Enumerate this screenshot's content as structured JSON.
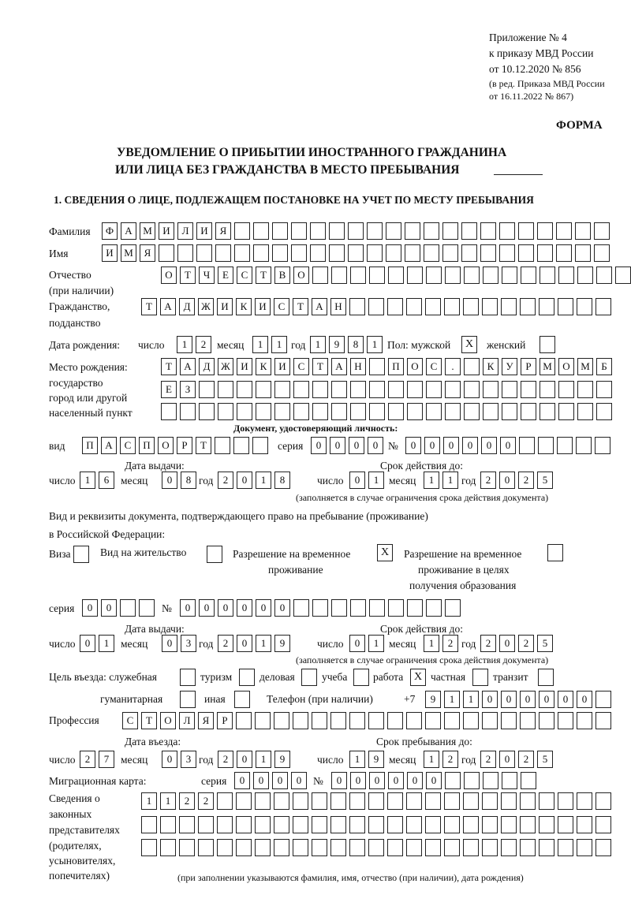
{
  "header": {
    "appendix": "Приложение № 4",
    "order": "к приказу МВД России",
    "order_date": "от 10.12.2020 № 856",
    "edition_1": "(в ред. Приказа МВД России",
    "edition_2": "от 16.11.2022 № 867)",
    "form_label": "ФОРМА",
    "title_1": "УВЕДОМЛЕНИЕ О ПРИБЫТИИ ИНОСТРАННОГО ГРАЖДАНИНА",
    "title_2": "ИЛИ ЛИЦА БЕЗ ГРАЖДАНСТВА В МЕСТО ПРЕБЫВАНИЯ"
  },
  "section1": {
    "heading": "1. СВЕДЕНИЯ О ЛИЦЕ, ПОДЛЕЖАЩЕМ ПОСТАНОВКЕ НА УЧЕТ ПО МЕСТУ ПРЕБЫВАНИЯ",
    "surname": {
      "label": "Фамилия",
      "cells": [
        "Ф",
        "А",
        "М",
        "И",
        "Л",
        "И",
        "Я",
        "",
        "",
        "",
        "",
        "",
        "",
        "",
        "",
        "",
        "",
        "",
        "",
        "",
        "",
        "",
        "",
        "",
        "",
        "",
        ""
      ]
    },
    "name": {
      "label": "Имя",
      "cells": [
        "И",
        "М",
        "Я",
        "",
        "",
        "",
        "",
        "",
        "",
        "",
        "",
        "",
        "",
        "",
        "",
        "",
        "",
        "",
        "",
        "",
        "",
        "",
        "",
        "",
        "",
        "",
        ""
      ]
    },
    "patronymic": {
      "label": "Отчество",
      "label_2": "(при наличии)",
      "cells": [
        "О",
        "Т",
        "Ч",
        "Е",
        "С",
        "Т",
        "В",
        "О",
        "",
        "",
        "",
        "",
        "",
        "",
        "",
        "",
        "",
        "",
        "",
        "",
        "",
        "",
        "",
        "",
        ""
      ]
    },
    "citizenship": {
      "label": "Гражданство,",
      "label_2": "подданство",
      "cells": [
        "Т",
        "А",
        "Д",
        "Ж",
        "И",
        "К",
        "И",
        "С",
        "Т",
        "А",
        "Н",
        "",
        "",
        "",
        "",
        "",
        "",
        "",
        "",
        "",
        "",
        "",
        "",
        "",
        ""
      ]
    },
    "birth_date": {
      "label": "Дата рождения:",
      "day_label": "число",
      "month_label": "месяц",
      "year_label": "год",
      "day": [
        "1",
        "2"
      ],
      "month": [
        "1",
        "1"
      ],
      "year": [
        "1",
        "9",
        "8",
        "1"
      ]
    },
    "sex": {
      "label": "Пол: мужской",
      "male": "X",
      "female_label": "женский",
      "female": ""
    },
    "birth_place": {
      "label_1": "Место рождения:",
      "label_2": "государство",
      "label_3": "город или другой",
      "label_4": "населенный пункт",
      "row_1": [
        "Т",
        "А",
        "Д",
        "Ж",
        "И",
        "К",
        "И",
        "С",
        "Т",
        "А",
        "Н",
        "",
        "П",
        "О",
        "С",
        ".",
        "",
        "К",
        "У",
        "Р",
        "М",
        "О",
        "М",
        "Б"
      ],
      "row_2": [
        "Е",
        "З",
        "",
        "",
        "",
        "",
        "",
        "",
        "",
        "",
        "",
        "",
        "",
        "",
        "",
        "",
        "",
        "",
        "",
        "",
        "",
        "",
        "",
        ""
      ],
      "row_3": [
        "",
        "",
        "",
        "",
        "",
        "",
        "",
        "",
        "",
        "",
        "",
        "",
        "",
        "",
        "",
        "",
        "",
        "",
        "",
        "",
        "",
        "",
        "",
        ""
      ]
    },
    "identity_doc": {
      "heading": "Документ, удостоверяющий личность:",
      "type_label": "вид",
      "type": [
        "П",
        "А",
        "С",
        "П",
        "О",
        "Р",
        "Т",
        "",
        "",
        ""
      ],
      "series_label": "серия",
      "series": [
        "0",
        "0",
        "0",
        "0"
      ],
      "number_label": "№",
      "number": [
        "0",
        "0",
        "0",
        "0",
        "0",
        "0",
        "",
        "",
        "",
        "",
        ""
      ],
      "issue_label": "Дата выдачи:",
      "valid_label": "Срок действия до:",
      "issue": {
        "day": [
          "1",
          "6"
        ],
        "month": [
          "0",
          "8"
        ],
        "year": [
          "2",
          "0",
          "1",
          "8"
        ]
      },
      "valid": {
        "day": [
          "0",
          "1"
        ],
        "month": [
          "1",
          "1"
        ],
        "year": [
          "2",
          "0",
          "2",
          "5"
        ]
      },
      "note": "(заполняется в случае ограничения срока действия документа)"
    },
    "stay_doc": {
      "label_1": "Вид и реквизиты документа, подтверждающего право на пребывание (проживание)",
      "label_2": "в Российской Федерации:",
      "visa_label": "Виза",
      "visa": "",
      "residence_label": "Вид на жительство",
      "residence": "",
      "temp_label_1": "Разрешение на временное",
      "temp_label_2": "проживание",
      "temp": "X",
      "edu_label_1": "Разрешение на временное",
      "edu_label_2": "проживание в целях",
      "edu_label_3": "получения образования",
      "edu": "",
      "series_label": "серия",
      "series": [
        "0",
        "0",
        "",
        ""
      ],
      "number_label": "№",
      "number": [
        "0",
        "0",
        "0",
        "0",
        "0",
        "0",
        "",
        "",
        "",
        "",
        "",
        "",
        "",
        "",
        ""
      ],
      "issue_label": "Дата выдачи:",
      "valid_label": "Срок действия до:",
      "issue": {
        "day": [
          "0",
          "1"
        ],
        "month": [
          "0",
          "3"
        ],
        "year": [
          "2",
          "0",
          "1",
          "9"
        ]
      },
      "valid": {
        "day": [
          "0",
          "1"
        ],
        "month": [
          "1",
          "2"
        ],
        "year": [
          "2",
          "0",
          "2",
          "5"
        ]
      },
      "note": "(заполняется в случае ограничения срока действия документа)"
    },
    "purpose": {
      "label": "Цель въезда: служебная",
      "service": "",
      "tourism_label": "туризм",
      "tourism": "",
      "business_label": "деловая",
      "business": "",
      "study_label": "учеба",
      "study": "",
      "work_label": "работа",
      "work": "X",
      "private_label": "частная",
      "private": "",
      "transit_label": "транзит",
      "transit": "",
      "humanitarian_label": "гуманитарная",
      "humanitarian": "",
      "other_label": "иная",
      "other": ""
    },
    "phone": {
      "label": "Телефон (при наличии)",
      "prefix": "+7",
      "cells": [
        "9",
        "1",
        "1",
        "0",
        "0",
        "0",
        "0",
        "0",
        "0",
        ""
      ]
    },
    "profession": {
      "label": "Профессия",
      "cells": [
        "С",
        "Т",
        "О",
        "Л",
        "Я",
        "Р",
        "",
        "",
        "",
        "",
        "",
        "",
        "",
        "",
        "",
        "",
        "",
        "",
        "",
        "",
        "",
        "",
        "",
        "",
        "",
        ""
      ]
    },
    "entry": {
      "entry_label": "Дата въезда:",
      "stay_label": "Срок пребывания до:",
      "entry": {
        "day": [
          "2",
          "7"
        ],
        "month": [
          "0",
          "3"
        ],
        "year": [
          "2",
          "0",
          "1",
          "9"
        ]
      },
      "stay": {
        "day": [
          "1",
          "9"
        ],
        "month": [
          "1",
          "2"
        ],
        "year": [
          "2",
          "0",
          "2",
          "5"
        ]
      }
    },
    "migration_card": {
      "label": "Миграционная карта:",
      "series_label": "серия",
      "series": [
        "0",
        "0",
        "0",
        "0"
      ],
      "number_label": "№",
      "number": [
        "0",
        "0",
        "0",
        "0",
        "0",
        "0",
        "",
        "",
        "",
        "",
        ""
      ]
    },
    "representatives": {
      "label_1": "Сведения о",
      "label_2": "законных",
      "label_3": "представителях",
      "label_4": "(родителях,",
      "label_5": "усыновителях,",
      "label_6": "попечителях)",
      "row_1": [
        "1",
        "1",
        "2",
        "2",
        "",
        "",
        "",
        "",
        "",
        "",
        "",
        "",
        "",
        "",
        "",
        "",
        "",
        "",
        "",
        "",
        "",
        "",
        "",
        "",
        ""
      ],
      "row_2": [
        "",
        "",
        "",
        "",
        "",
        "",
        "",
        "",
        "",
        "",
        "",
        "",
        "",
        "",
        "",
        "",
        "",
        "",
        "",
        "",
        "",
        "",
        "",
        "",
        ""
      ],
      "row_3": [
        "",
        "",
        "",
        "",
        "",
        "",
        "",
        "",
        "",
        "",
        "",
        "",
        "",
        "",
        "",
        "",
        "",
        "",
        "",
        "",
        "",
        "",
        "",
        "",
        ""
      ],
      "note": "(при заполнении указываются фамилия, имя, отчество (при наличии), дата рождения)"
    },
    "date_labels": {
      "day": "число",
      "month": "месяц",
      "year": "год"
    }
  }
}
